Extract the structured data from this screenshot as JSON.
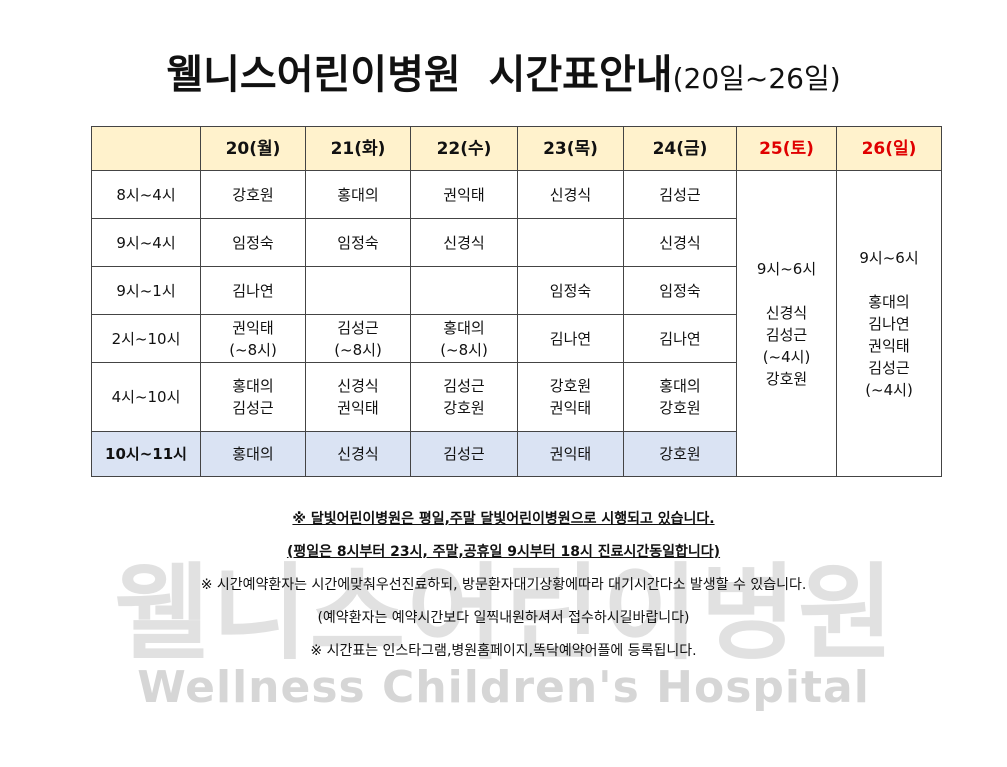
{
  "title": {
    "main": "웰니스어린이병원  시간표안내",
    "sub": "(20일~26일)"
  },
  "table": {
    "days": [
      "20(월)",
      "21(화)",
      "22(수)",
      "23(목)",
      "24(금)",
      "25(토)",
      "26(일)"
    ],
    "rows": [
      {
        "time": "8시~4시",
        "cells": [
          [
            "강호원"
          ],
          [
            "홍대의"
          ],
          [
            "권익태"
          ],
          [
            "신경식"
          ],
          [
            "김성근"
          ]
        ]
      },
      {
        "time": "9시~4시",
        "cells": [
          [
            "임정숙"
          ],
          [
            "임정숙"
          ],
          [
            "신경식"
          ],
          null,
          [
            "신경식"
          ]
        ]
      },
      {
        "time": "9시~1시",
        "cells": [
          [
            "김나연"
          ],
          null,
          null,
          [
            "임정숙"
          ],
          [
            "임정숙"
          ]
        ]
      },
      {
        "time": "2시~10시",
        "cells": [
          [
            "권익태",
            "(~8시)"
          ],
          [
            "김성근",
            "(~8시)"
          ],
          [
            "홍대의",
            "(~8시)"
          ],
          [
            "김나연"
          ],
          [
            "김나연"
          ]
        ]
      },
      {
        "time": "4시~10시",
        "cells": [
          [
            "홍대의",
            "김성근"
          ],
          [
            "신경식",
            "권익태"
          ],
          [
            "김성근",
            "강호원"
          ],
          [
            "강호원",
            "권익태"
          ],
          [
            "홍대의",
            "강호원"
          ]
        ]
      },
      {
        "time": "10시~11시",
        "cells": [
          [
            "홍대의"
          ],
          [
            "신경식"
          ],
          [
            "김성근"
          ],
          [
            "권익태"
          ],
          [
            "강호원"
          ]
        ]
      }
    ],
    "weekend": [
      {
        "hours": "9시~6시",
        "staff": [
          "신경식",
          "김성근",
          "(~4시)",
          "강호원"
        ]
      },
      {
        "hours": "9시~6시",
        "staff": [
          "홍대의",
          "김나연",
          "권익태",
          "김성근",
          "(~4시)"
        ]
      }
    ]
  },
  "notes": [
    "※ 달빛어린이병원은 평일,주말 달빛어린이병원으로 시행되고 있습니다.",
    "(평일은 8시부터 23시, 주말,공휴일 9시부터 18시 진료시간동일합니다)",
    "※ 시간예약환자는 시간에맞춰우선진료하되, 방문환자대기상황에따라 대기시간다소 발생할 수 있습니다.",
    "(예약환자는 예약시간보다 일찍내원하셔서 접수하시길바랍니다)",
    "※ 시간표는 인스타그램,병원홈페이지,똑닥예약어플에 등록됩니다."
  ],
  "watermark": {
    "korean": "웰니스어린이병원",
    "english": "Wellness Children's Hospital"
  }
}
